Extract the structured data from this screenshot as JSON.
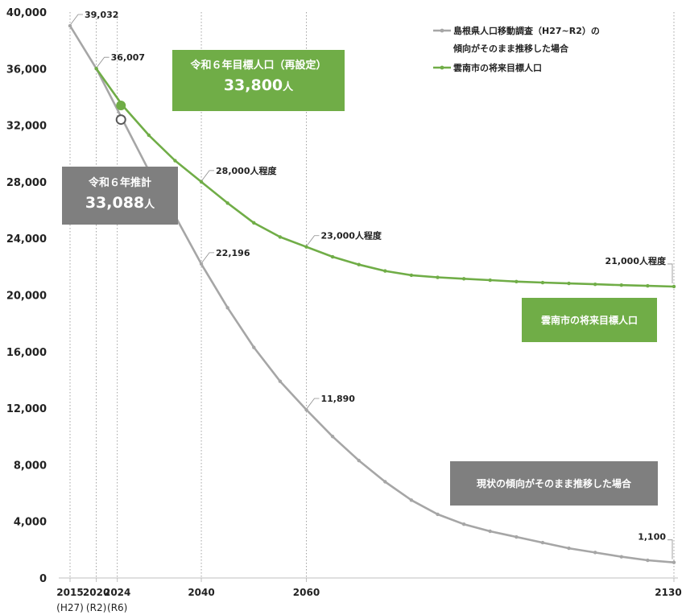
{
  "chart_data": {
    "type": "line",
    "ylim": [
      0,
      40000
    ],
    "y_ticks": [
      "0",
      "4,000",
      "8,000",
      "12,000",
      "16,000",
      "20,000",
      "24,000",
      "28,000",
      "32,000",
      "36,000",
      "40,000"
    ],
    "x_ticks": [
      {
        "year": 2015,
        "label": "2015",
        "sub": "(H27)"
      },
      {
        "year": 2020,
        "label": "2020",
        "sub": "(R2)"
      },
      {
        "year": 2024,
        "label": "2024",
        "sub": "(R6)"
      },
      {
        "year": 2040,
        "label": "2040",
        "sub": ""
      },
      {
        "year": 2060,
        "label": "2060",
        "sub": ""
      },
      {
        "year": 2130,
        "label": "2130",
        "sub": ""
      }
    ],
    "series": [
      {
        "name": "島根県人口移動調査（H27~R2）の傾向がそのまま推移した場合",
        "color": "#a6a6a6",
        "x": [
          2015,
          2020,
          2025,
          2030,
          2035,
          2040,
          2045,
          2050,
          2055,
          2060,
          2065,
          2070,
          2075,
          2080,
          2085,
          2090,
          2095,
          2100,
          2105,
          2110,
          2115,
          2120,
          2125,
          2130
        ],
        "values": [
          39032,
          36007,
          32400,
          28800,
          25600,
          22196,
          19100,
          16300,
          13900,
          11890,
          10000,
          8300,
          6800,
          5500,
          4500,
          3800,
          3300,
          2900,
          2500,
          2100,
          1800,
          1500,
          1250,
          1100
        ]
      },
      {
        "name": "雲南市の将来目標人口",
        "color": "#70ad47",
        "x": [
          2020,
          2025,
          2030,
          2035,
          2040,
          2045,
          2050,
          2055,
          2060,
          2065,
          2070,
          2075,
          2080,
          2085,
          2090,
          2095,
          2100,
          2105,
          2110,
          2115,
          2120,
          2125,
          2130
        ],
        "values": [
          36007,
          33400,
          31300,
          29500,
          28000,
          26500,
          25100,
          24100,
          23400,
          22700,
          22150,
          21700,
          21400,
          21250,
          21150,
          21050,
          20950,
          20880,
          20820,
          20760,
          20700,
          20650,
          20600
        ]
      }
    ],
    "markers": [
      {
        "series": 1,
        "year": 2025,
        "value": 33400,
        "filled": true
      },
      {
        "series": 0,
        "year": 2025,
        "value": 32400,
        "filled": false
      }
    ],
    "data_labels": [
      {
        "series": 0,
        "year": 2015,
        "value": 39032,
        "text": "39,032"
      },
      {
        "series": 0,
        "year": 2020,
        "value": 36007,
        "text": "36,007"
      },
      {
        "series": 0,
        "year": 2040,
        "value": 22196,
        "text": "22,196"
      },
      {
        "series": 0,
        "year": 2060,
        "value": 11890,
        "text": "11,890"
      },
      {
        "series": 0,
        "year": 2130,
        "value": 1100,
        "text": "1,100"
      },
      {
        "series": 1,
        "year": 2040,
        "value": 28000,
        "text": "28,000人程度"
      },
      {
        "series": 1,
        "year": 2060,
        "value": 23400,
        "text": "23,000人程度"
      },
      {
        "series": 1,
        "year": 2130,
        "value": 20600,
        "text": "21,000人程度"
      }
    ],
    "legend": {
      "position": "top-right",
      "entries": [
        {
          "lines": [
            "島根県人口移動調査（H27~R2）の",
            "傾向がそのまま推移した場合"
          ],
          "color": "#a6a6a6"
        },
        {
          "lines": [
            "雲南市の将来目標人口"
          ],
          "color": "#70ad47"
        }
      ]
    },
    "grid": false
  },
  "annotations": {
    "target_box": {
      "line1": "令和６年目標人口（再設定）",
      "value": "33,800",
      "unit": "人",
      "color": "#70ad47"
    },
    "estimate_box": {
      "line1": "令和６年推計",
      "value": "33,088",
      "unit": "人",
      "color": "#7f7f7f"
    },
    "green_tag": {
      "text": "雲南市の将来目標人口",
      "color": "#70ad47"
    },
    "gray_tag": {
      "text": "現状の傾向がそのまま推移した場合",
      "color": "#7f7f7f"
    }
  }
}
